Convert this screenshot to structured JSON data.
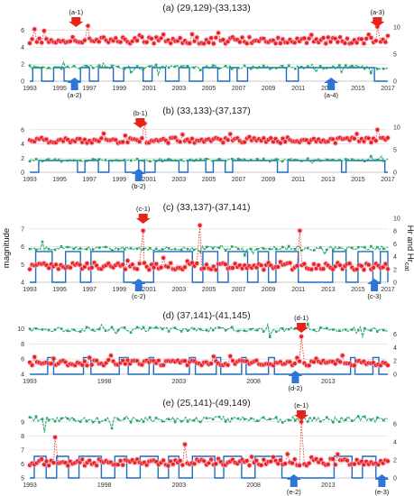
{
  "figure": {
    "ylabel_left": "magnitude",
    "ylabel_right": "Hr and Hr",
    "ylabel_right_sub": "cat"
  },
  "colors": {
    "magnitude": "#e8231c",
    "magnitude_highlight": "#f7a8c4",
    "hr": "#1f6cc0",
    "hrcat": "#22a868",
    "arrow_red": "#e8231c",
    "arrow_blue": "#2e75d6"
  },
  "chart_data": [
    {
      "type": "line",
      "title": "(a) (29,129)-(33,133)",
      "x_range": [
        1993,
        2017
      ],
      "x_ticks": [
        "1993",
        "1995",
        "1997",
        "1999",
        "2001",
        "2003",
        "2005",
        "2007",
        "2009",
        "2011",
        "2013",
        "2015",
        "2017"
      ],
      "y_left_ticks": [
        "0",
        "2",
        "4",
        "6"
      ],
      "y_left_range": [
        0,
        7
      ],
      "y_right_ticks": [
        "0",
        "5",
        "10"
      ],
      "y_right_range": [
        0,
        11
      ],
      "magnitude_baseline": 4.8,
      "hrcat_baseline": 2.6,
      "hr_high": 2.5,
      "magnitude_peaks": [
        {
          "x": 1996.9,
          "y": 6.5
        },
        {
          "x": 2016.3,
          "y": 6.4
        }
      ],
      "hr_high_intervals": [
        [
          1993.2,
          1993.8
        ],
        [
          1994.6,
          1995.3
        ],
        [
          1996.4,
          1997.0
        ],
        [
          1997.6,
          1998.6
        ],
        [
          1999.3,
          2000.6
        ],
        [
          2001.2,
          2002.1
        ],
        [
          2003.0,
          2003.7
        ],
        [
          2004.6,
          2005.6
        ],
        [
          2006.4,
          2006.9
        ],
        [
          2007.6,
          2010.2
        ],
        [
          2011.0,
          2016.1
        ]
      ],
      "annotations": [
        {
          "label": "(a-1)",
          "x": 1996.1,
          "kind": "red",
          "pos": "top"
        },
        {
          "label": "(a-3)",
          "x": 2016.3,
          "kind": "red",
          "pos": "top"
        },
        {
          "label": "(a-2)",
          "x": 1996.0,
          "kind": "blue",
          "pos": "bottom"
        },
        {
          "label": "(a-4)",
          "x": 2013.2,
          "kind": "blue",
          "pos": "bottom"
        }
      ]
    },
    {
      "type": "line",
      "title": "(b) (33,133)-(37,137)",
      "x_range": [
        1993,
        2017
      ],
      "x_ticks": [
        "1993",
        "1995",
        "1997",
        "1999",
        "2001",
        "2003",
        "2005",
        "2007",
        "2009",
        "2011",
        "2013",
        "2015",
        "2017"
      ],
      "y_left_ticks": [
        "0",
        "2",
        "4",
        "6"
      ],
      "y_left_range": [
        0,
        7
      ],
      "y_right_ticks": [
        "0",
        "5",
        "10"
      ],
      "y_right_range": [
        0,
        11
      ],
      "magnitude_baseline": 4.5,
      "hrcat_baseline": 2.7,
      "hr_high": 2.6,
      "magnitude_peaks": [
        {
          "x": 2000.7,
          "y": 6.9
        },
        {
          "x": 2016.3,
          "y": 6.0
        }
      ],
      "hr_high_intervals": [
        [
          1993.6,
          1996.2
        ],
        [
          1996.7,
          1997.6
        ],
        [
          1998.3,
          1999.4
        ],
        [
          2000.3,
          2000.7
        ],
        [
          2001.4,
          2003.0
        ],
        [
          2003.6,
          2004.8
        ],
        [
          2005.3,
          2006.1
        ],
        [
          2006.6,
          2009.6
        ],
        [
          2010.3,
          2013.9
        ],
        [
          2014.2,
          2016.8
        ]
      ],
      "annotations": [
        {
          "label": "(b-1)",
          "x": 2000.4,
          "kind": "red",
          "pos": "top"
        },
        {
          "label": "(b-2)",
          "x": 2000.3,
          "kind": "blue",
          "pos": "bottom"
        }
      ]
    },
    {
      "type": "line",
      "title": "(c) (33,137)-(37,141)",
      "x_range": [
        1993,
        2017
      ],
      "x_ticks": [
        "1993",
        "1995",
        "1997",
        "1999",
        "2001",
        "2003",
        "2005",
        "2007",
        "2009",
        "2011",
        "2013",
        "2015",
        "2017"
      ],
      "y_left_ticks": [
        "4",
        "5",
        "6",
        "7"
      ],
      "y_left_range": [
        4,
        7.6
      ],
      "y_right_ticks": [
        "0",
        "2",
        "4",
        "6",
        "8",
        "10"
      ],
      "y_right_range": [
        0,
        10
      ],
      "magnitude_baseline": 4.9,
      "hrcat_baseline": 5.3,
      "hr_high": 4.8,
      "magnitude_peaks": [
        {
          "x": 2000.6,
          "y": 6.9
        },
        {
          "x": 2004.4,
          "y": 7.2
        },
        {
          "x": 2011.1,
          "y": 6.9
        }
      ],
      "hr_high_intervals": [
        [
          1993.4,
          1994.5
        ],
        [
          1995.4,
          1996.4
        ],
        [
          1997.1,
          1999.3
        ],
        [
          2001.3,
          2003.9
        ],
        [
          2004.6,
          2005.6
        ],
        [
          2006.3,
          2007.6
        ],
        [
          2008.3,
          2009.0
        ],
        [
          2009.5,
          2011.0
        ],
        [
          2013.3,
          2014.2
        ],
        [
          2015.0,
          2016.0
        ],
        [
          2016.5,
          2017.0
        ]
      ],
      "annotations": [
        {
          "label": "(c-1)",
          "x": 2000.6,
          "kind": "red",
          "pos": "top"
        },
        {
          "label": "(c-2)",
          "x": 2000.3,
          "kind": "blue",
          "pos": "bottom"
        },
        {
          "label": "(c-3)",
          "x": 2016.1,
          "kind": "blue",
          "pos": "bottom"
        }
      ]
    },
    {
      "type": "line",
      "title": "(d) (37,141)-(41,145)",
      "x_range": [
        1993,
        2017
      ],
      "x_ticks": [
        "1993",
        "1998",
        "2003",
        "2008",
        "2013"
      ],
      "x_tick_positions": [
        1993,
        1998,
        2003,
        2008,
        2013
      ],
      "y_left_ticks": [
        "4",
        "6",
        "8",
        "10"
      ],
      "y_left_range": [
        4,
        10.2
      ],
      "y_right_ticks": [
        "0",
        "2",
        "4",
        "6"
      ],
      "y_right_range": [
        0,
        7
      ],
      "magnitude_baseline": 5.5,
      "hrcat_baseline": 6.7,
      "hr_high": 2.5,
      "magnitude_peaks": [
        {
          "x": 2011.2,
          "y": 9.0
        }
      ],
      "hr_high_intervals": [
        [
          1994.2,
          1994.6
        ],
        [
          1996.6,
          1997.1
        ],
        [
          1999.0,
          1999.6
        ],
        [
          2001.0,
          2001.3
        ],
        [
          2003.7,
          2004.1
        ],
        [
          2005.5,
          2005.8
        ],
        [
          2007.2,
          2007.5
        ],
        [
          2009.0,
          2009.4
        ],
        [
          2014.5,
          2014.8
        ],
        [
          2016.0,
          2016.4
        ]
      ],
      "annotations": [
        {
          "label": "(d-1)",
          "x": 2011.2,
          "kind": "red",
          "pos": "top"
        },
        {
          "label": "(d-2)",
          "x": 2010.8,
          "kind": "blue",
          "pos": "bottom"
        }
      ]
    },
    {
      "type": "line",
      "title": "(e) (25,141)-(49,149)",
      "x_range": [
        1993,
        2017
      ],
      "x_ticks": [
        "1993",
        "1998",
        "2003",
        "2008",
        "2013"
      ],
      "x_tick_positions": [
        1993,
        1998,
        2003,
        2008,
        2013
      ],
      "y_left_ticks": [
        "5",
        "6",
        "7",
        "8",
        "9"
      ],
      "y_left_range": [
        5,
        9.5
      ],
      "y_right_ticks": [
        "0",
        "2",
        "4",
        "6"
      ],
      "y_right_range": [
        0,
        7
      ],
      "magnitude_baseline": 6.1,
      "hrcat_baseline": 6.5,
      "hr_high": 2.4,
      "magnitude_peaks": [
        {
          "x": 2011.2,
          "y": 9.0
        },
        {
          "x": 1994.7,
          "y": 7.9
        },
        {
          "x": 2003.4,
          "y": 7.4
        }
      ],
      "hr_high_intervals": [
        [
          1993.3,
          1994.1
        ],
        [
          1994.8,
          1995.6
        ],
        [
          1996.3,
          1997.8
        ],
        [
          1998.7,
          1999.5
        ],
        [
          2000.4,
          2001.6
        ],
        [
          2002.3,
          2003.0
        ],
        [
          2003.9,
          2005.4
        ],
        [
          2006.0,
          2007.2
        ],
        [
          2008.1,
          2009.9
        ],
        [
          2013.4,
          2014.6
        ],
        [
          2015.3,
          2016.2
        ]
      ],
      "annotations": [
        {
          "label": "(e-1)",
          "x": 2011.2,
          "kind": "red",
          "pos": "top"
        },
        {
          "label": "(e-2)",
          "x": 2010.7,
          "kind": "blue",
          "pos": "bottom"
        },
        {
          "label": "(e-3)",
          "x": 2016.6,
          "kind": "blue",
          "pos": "bottom"
        }
      ]
    }
  ]
}
